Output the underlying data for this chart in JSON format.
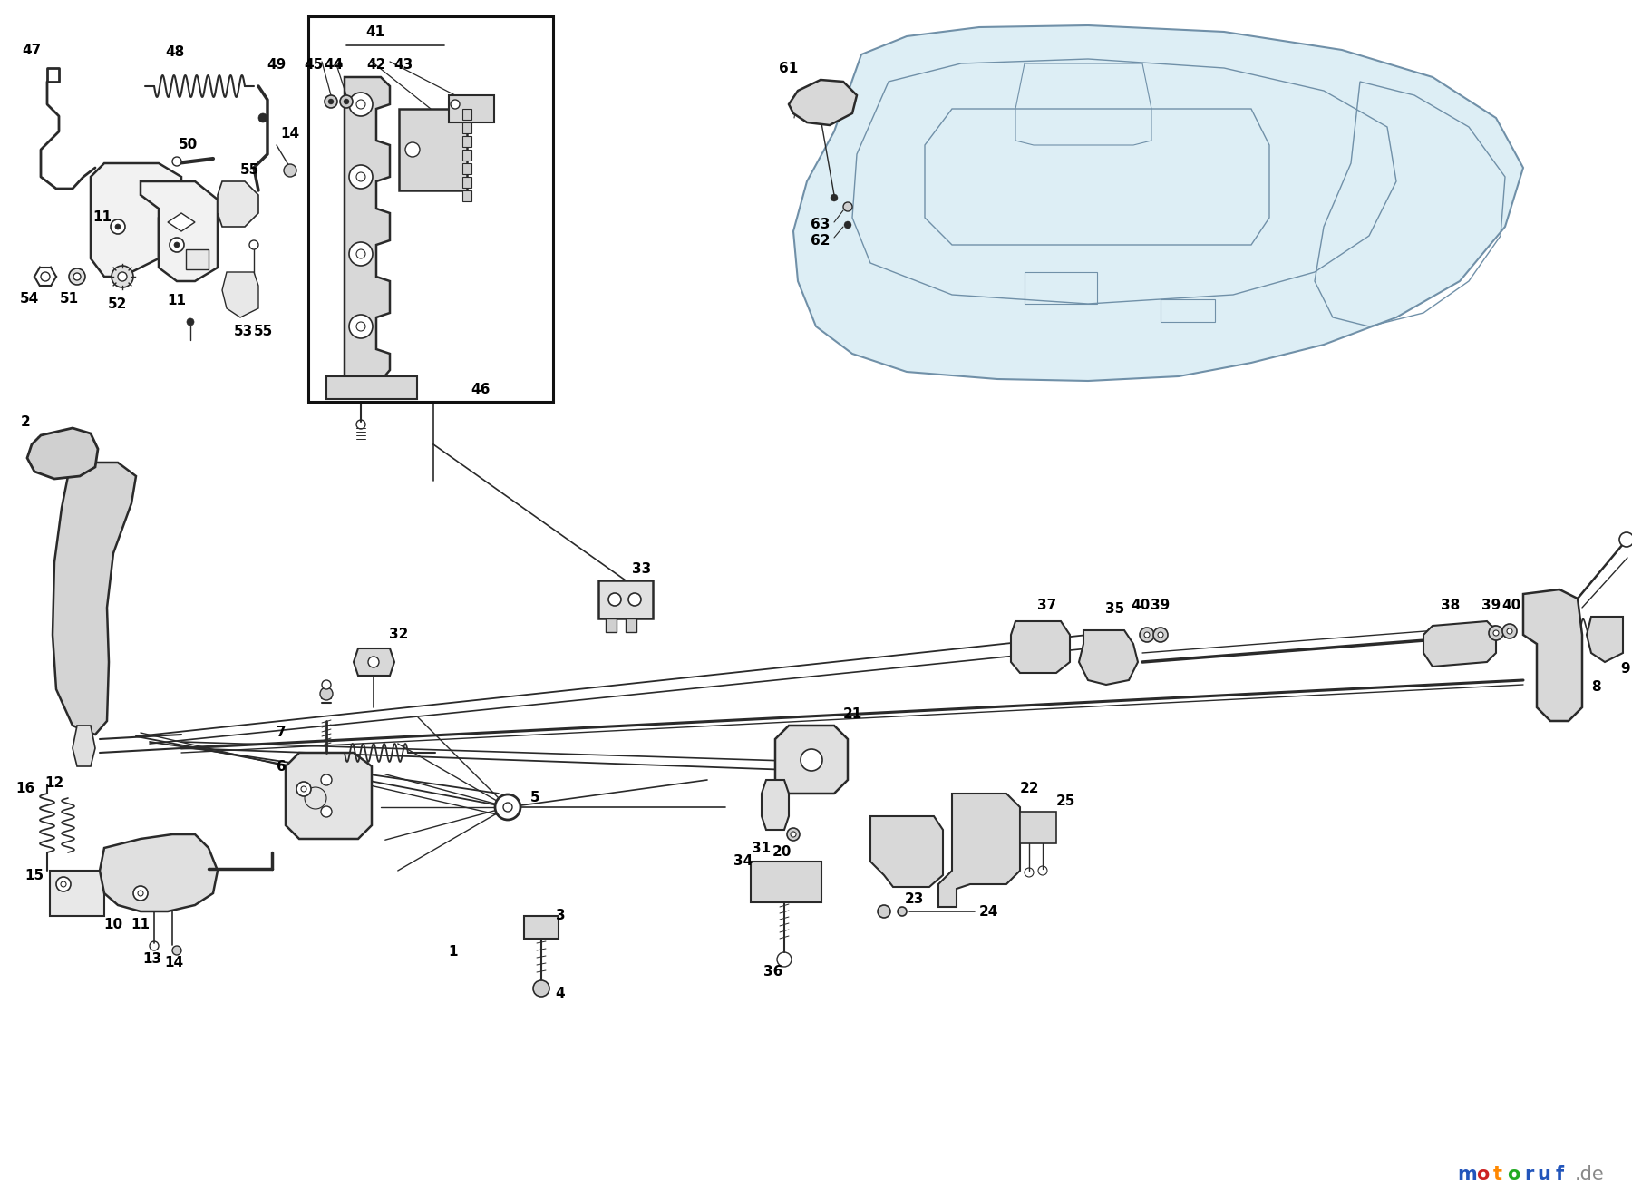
{
  "bg_color": "#ffffff",
  "lc": "#2a2a2a",
  "lc_light": "#aaaaaa",
  "body_stroke": "#7090a8",
  "body_fill": "#ddeef5",
  "watermark_letters": [
    "m",
    "o",
    "t",
    "o",
    "r",
    "u",
    "f"
  ],
  "watermark_colors": [
    "#2255bb",
    "#cc2222",
    "#ff8800",
    "#22aa22",
    "#2255bb",
    "#2255bb",
    "#2255bb"
  ],
  "watermark_dot_de": "#888888",
  "fig_w": 18.0,
  "fig_h": 13.21,
  "dpi": 100
}
